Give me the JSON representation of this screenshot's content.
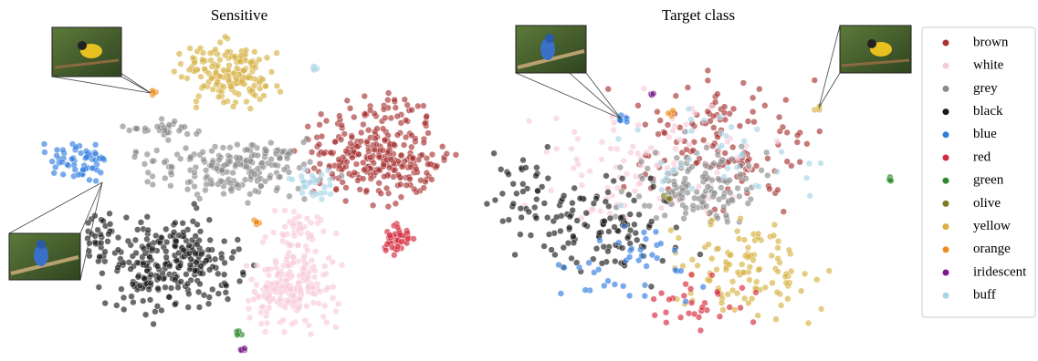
{
  "figure": {
    "panels": [
      {
        "title": "Sensitive"
      },
      {
        "title": "Target class"
      }
    ],
    "legend": {
      "items": [
        {
          "label": "brown",
          "color": "#a83232"
        },
        {
          "label": "white",
          "color": "#f7cbd9"
        },
        {
          "label": "grey",
          "color": "#8a8a8a"
        },
        {
          "label": "black",
          "color": "#1a1a1a"
        },
        {
          "label": "blue",
          "color": "#2f7de1"
        },
        {
          "label": "red",
          "color": "#d6283c"
        },
        {
          "label": "green",
          "color": "#2a8a2a"
        },
        {
          "label": "olive",
          "color": "#7d7a1c"
        },
        {
          "label": "yellow",
          "color": "#d6b040"
        },
        {
          "label": "orange",
          "color": "#f08a1a"
        },
        {
          "label": "iridescent",
          "color": "#7a1a8a"
        },
        {
          "label": "buff",
          "color": "#a8d4e6"
        }
      ]
    }
  }
}
